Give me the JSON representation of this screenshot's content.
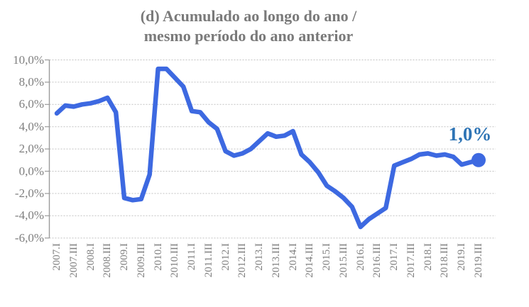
{
  "title": {
    "line1": "(d) Acumulado ao longo do ano /",
    "line2": "mesmo período do ano anterior"
  },
  "end_label": "1,0%",
  "y_axis": {
    "tick_labels": [
      "10,0%",
      "8,0%",
      "6,0%",
      "4,0%",
      "2,0%",
      "0,0%",
      "-2,0%",
      "-4,0%",
      "-6,0%"
    ],
    "max": 10,
    "min": -6,
    "step": 2
  },
  "x_axis": {
    "tick_labels": [
      "2007.I",
      "2007.III",
      "2008.I",
      "2008.III",
      "2009.I",
      "2009.III",
      "2010.I",
      "2010.III",
      "2011.I",
      "2011.III",
      "2012.I",
      "2012.III",
      "2013.I",
      "2013.III",
      "2014.I",
      "2014.III",
      "2015.I",
      "2015.III",
      "2016.I",
      "2016.III",
      "2017.I",
      "2017.III",
      "2018.I",
      "2018.III",
      "2019.I",
      "2019.III"
    ]
  },
  "colors": {
    "line": "#3d69e1",
    "marker": "#3d69e1",
    "end_label": "#2e74b5",
    "title": "#7a7a7a",
    "tick_text": "#7f7f7f",
    "axis": "#9b9b9b",
    "grid": "#c2c2c2"
  },
  "chart_data": {
    "type": "line",
    "title": "(d) Acumulado ao longo do ano / mesmo período do ano anterior",
    "x": [
      "2007.I",
      "2007.II",
      "2007.III",
      "2007.IV",
      "2008.I",
      "2008.II",
      "2008.III",
      "2008.IV",
      "2009.I",
      "2009.II",
      "2009.III",
      "2009.IV",
      "2010.I",
      "2010.II",
      "2010.III",
      "2010.IV",
      "2011.I",
      "2011.II",
      "2011.III",
      "2011.IV",
      "2012.I",
      "2012.II",
      "2012.III",
      "2012.IV",
      "2013.I",
      "2013.II",
      "2013.III",
      "2013.IV",
      "2014.I",
      "2014.II",
      "2014.III",
      "2014.IV",
      "2015.I",
      "2015.II",
      "2015.III",
      "2015.IV",
      "2016.I",
      "2016.II",
      "2016.III",
      "2016.IV",
      "2017.I",
      "2017.II",
      "2017.III",
      "2017.IV",
      "2018.I",
      "2018.II",
      "2018.III",
      "2018.IV",
      "2019.I",
      "2019.II",
      "2019.III"
    ],
    "values": [
      5.2,
      5.9,
      5.8,
      6.0,
      6.1,
      6.3,
      6.6,
      5.3,
      -2.4,
      -2.6,
      -2.5,
      -0.3,
      9.2,
      9.2,
      8.4,
      7.6,
      5.4,
      5.3,
      4.4,
      3.8,
      1.8,
      1.4,
      1.6,
      2.0,
      2.7,
      3.4,
      3.1,
      3.2,
      3.6,
      1.5,
      0.8,
      -0.1,
      -1.3,
      -1.8,
      -2.4,
      -3.2,
      -5.0,
      -4.3,
      -3.8,
      -3.3,
      0.5,
      0.8,
      1.1,
      1.5,
      1.6,
      1.4,
      1.5,
      1.3,
      0.6,
      0.8,
      1.0
    ],
    "ylim": [
      -6,
      10
    ],
    "y_tick_format": "percent-comma-decimal",
    "grid": "horizontal-dashed",
    "legend": "none",
    "last_point": {
      "x": "2019.III",
      "value": 1.0,
      "label": "1,0%",
      "marker": "circle"
    }
  }
}
